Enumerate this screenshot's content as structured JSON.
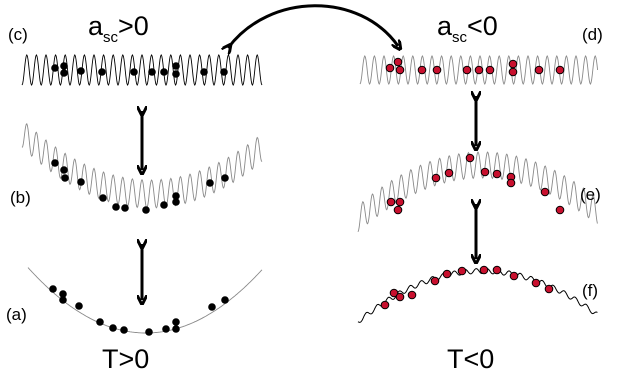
{
  "panels": {
    "a": {
      "label": "(a)"
    },
    "b": {
      "label": "(b)"
    },
    "c": {
      "label": "(c)"
    },
    "d": {
      "label": "(d)"
    },
    "e": {
      "label": "(e)"
    },
    "f": {
      "label": "(f)"
    }
  },
  "headers": {
    "left": {
      "main": "a",
      "subscript": "sc",
      "relation": ">0"
    },
    "right": {
      "main": "a",
      "subscript": "sc",
      "relation": "<0"
    }
  },
  "footers": {
    "left": "T>0",
    "right": "T<0"
  },
  "colors": {
    "atom_positive": "#000000",
    "atom_negative": "#c8102e",
    "wave_light": "#8a8a8a",
    "wave_dark": "#000000",
    "arrow": "#000000"
  }
}
